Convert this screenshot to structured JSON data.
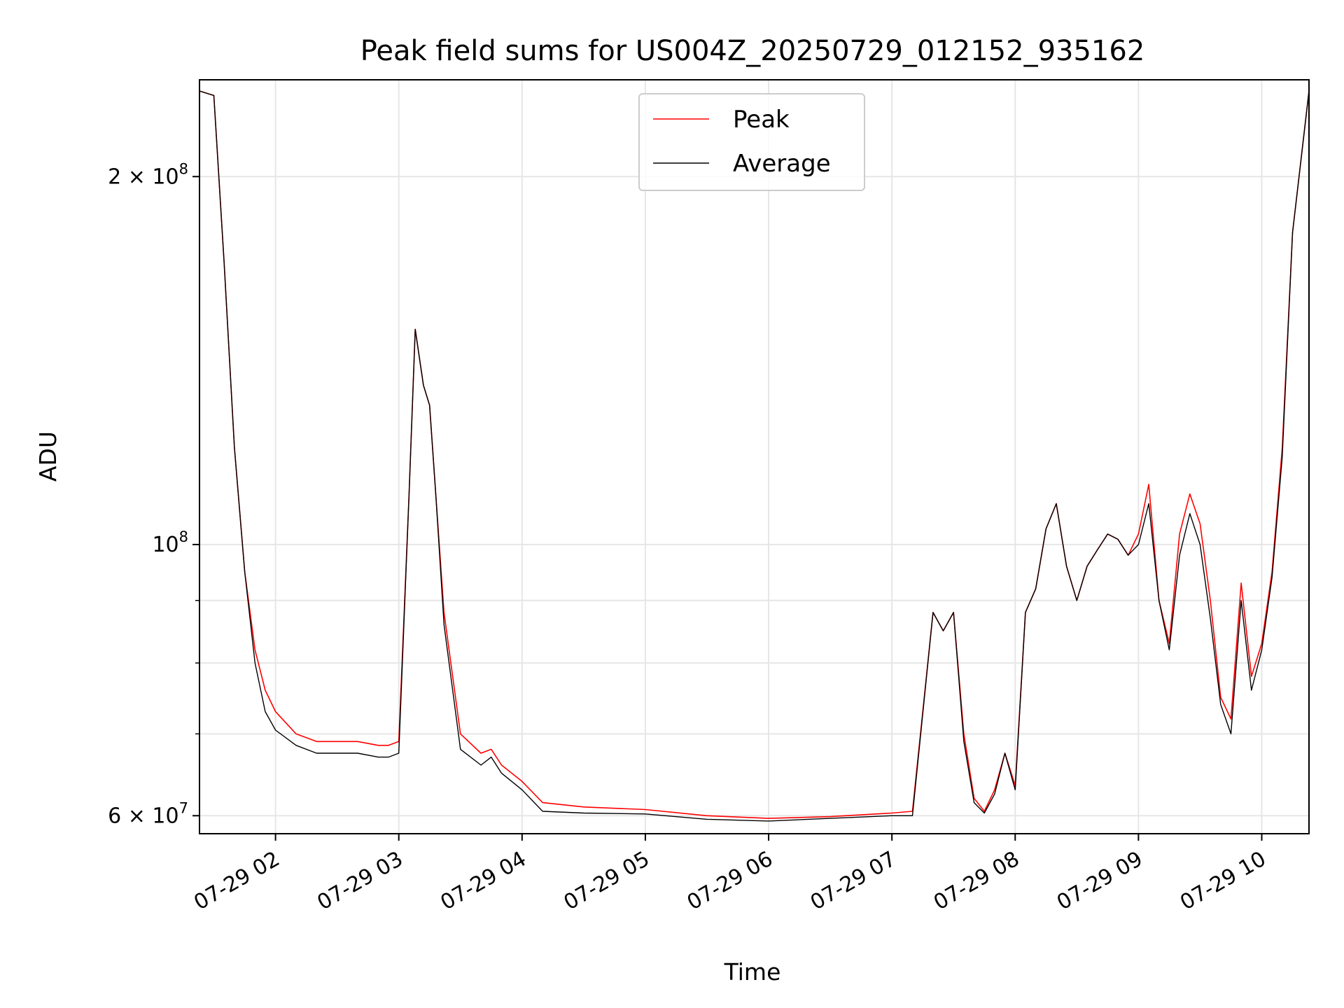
{
  "chart_data": {
    "type": "line",
    "title": "Peak field sums for US004Z_20250729_012152_935162",
    "xlabel": "Time",
    "ylabel": "ADU",
    "y_scale": "log",
    "xlim": [
      "2025-07-29 01:23",
      "2025-07-29 10:23"
    ],
    "ylim": [
      58000000,
      240000000
    ],
    "x_ticks": [
      {
        "value": "2025-07-29 02:00",
        "label": "07-29 02"
      },
      {
        "value": "2025-07-29 03:00",
        "label": "07-29 03"
      },
      {
        "value": "2025-07-29 04:00",
        "label": "07-29 04"
      },
      {
        "value": "2025-07-29 05:00",
        "label": "07-29 05"
      },
      {
        "value": "2025-07-29 06:00",
        "label": "07-29 06"
      },
      {
        "value": "2025-07-29 07:00",
        "label": "07-29 07"
      },
      {
        "value": "2025-07-29 08:00",
        "label": "07-29 08"
      },
      {
        "value": "2025-07-29 09:00",
        "label": "07-29 09"
      },
      {
        "value": "2025-07-29 10:00",
        "label": "07-29 10"
      }
    ],
    "y_major_ticks": [
      {
        "value": 60000000,
        "label_base": "6 × 10",
        "label_exp": "7"
      },
      {
        "value": 100000000,
        "label_base": "10",
        "label_exp": "8"
      },
      {
        "value": 200000000,
        "label_base": "2 × 10",
        "label_exp": "8"
      }
    ],
    "y_minor_ticks": [
      70000000,
      80000000,
      90000000
    ],
    "grid": true,
    "legend_position": "top-center",
    "series": [
      {
        "name": "Peak",
        "color": "#ff0000",
        "x": [
          "2025-07-29 01:23",
          "2025-07-29 01:30",
          "2025-07-29 01:35",
          "2025-07-29 01:40",
          "2025-07-29 01:45",
          "2025-07-29 01:50",
          "2025-07-29 01:55",
          "2025-07-29 02:00",
          "2025-07-29 02:10",
          "2025-07-29 02:20",
          "2025-07-29 02:30",
          "2025-07-29 02:40",
          "2025-07-29 02:50",
          "2025-07-29 02:55",
          "2025-07-29 03:00",
          "2025-07-29 03:05",
          "2025-07-29 03:08",
          "2025-07-29 03:12",
          "2025-07-29 03:15",
          "2025-07-29 03:18",
          "2025-07-29 03:22",
          "2025-07-29 03:30",
          "2025-07-29 03:40",
          "2025-07-29 03:45",
          "2025-07-29 03:50",
          "2025-07-29 04:00",
          "2025-07-29 04:10",
          "2025-07-29 04:30",
          "2025-07-29 05:00",
          "2025-07-29 05:30",
          "2025-07-29 06:00",
          "2025-07-29 06:30",
          "2025-07-29 07:00",
          "2025-07-29 07:10",
          "2025-07-29 07:20",
          "2025-07-29 07:25",
          "2025-07-29 07:30",
          "2025-07-29 07:35",
          "2025-07-29 07:40",
          "2025-07-29 07:45",
          "2025-07-29 07:50",
          "2025-07-29 07:55",
          "2025-07-29 08:00",
          "2025-07-29 08:05",
          "2025-07-29 08:10",
          "2025-07-29 08:15",
          "2025-07-29 08:20",
          "2025-07-29 08:25",
          "2025-07-29 08:30",
          "2025-07-29 08:35",
          "2025-07-29 08:40",
          "2025-07-29 08:45",
          "2025-07-29 08:50",
          "2025-07-29 08:55",
          "2025-07-29 09:00",
          "2025-07-29 09:05",
          "2025-07-29 09:10",
          "2025-07-29 09:15",
          "2025-07-29 09:20",
          "2025-07-29 09:25",
          "2025-07-29 09:30",
          "2025-07-29 09:35",
          "2025-07-29 09:40",
          "2025-07-29 09:45",
          "2025-07-29 09:50",
          "2025-07-29 09:55",
          "2025-07-29 10:00",
          "2025-07-29 10:05",
          "2025-07-29 10:10",
          "2025-07-29 10:15",
          "2025-07-29 10:23"
        ],
        "values": [
          235000000,
          233000000,
          170000000,
          120000000,
          95000000,
          82000000,
          76000000,
          73000000,
          70000000,
          69000000,
          69000000,
          69000000,
          68500000,
          68500000,
          69000000,
          110000000,
          150000000,
          135000000,
          130000000,
          110000000,
          88000000,
          70000000,
          67500000,
          68000000,
          66000000,
          64000000,
          61500000,
          61000000,
          60700000,
          60000000,
          59700000,
          59900000,
          60300000,
          60500000,
          88000000,
          85000000,
          88000000,
          70000000,
          62000000,
          60500000,
          63000000,
          67500000,
          63500000,
          88000000,
          92000000,
          103000000,
          108000000,
          96000000,
          90000000,
          96000000,
          99000000,
          102000000,
          101000000,
          98000000,
          102000000,
          112000000,
          90000000,
          83000000,
          102000000,
          110000000,
          104000000,
          90000000,
          75000000,
          72000000,
          93000000,
          78000000,
          83000000,
          95000000,
          120000000,
          180000000,
          235000000
        ]
      },
      {
        "name": "Average",
        "color": "#000000",
        "x": [
          "2025-07-29 01:23",
          "2025-07-29 01:30",
          "2025-07-29 01:35",
          "2025-07-29 01:40",
          "2025-07-29 01:45",
          "2025-07-29 01:50",
          "2025-07-29 01:55",
          "2025-07-29 02:00",
          "2025-07-29 02:10",
          "2025-07-29 02:20",
          "2025-07-29 02:30",
          "2025-07-29 02:40",
          "2025-07-29 02:50",
          "2025-07-29 02:55",
          "2025-07-29 03:00",
          "2025-07-29 03:05",
          "2025-07-29 03:08",
          "2025-07-29 03:12",
          "2025-07-29 03:15",
          "2025-07-29 03:18",
          "2025-07-29 03:22",
          "2025-07-29 03:30",
          "2025-07-29 03:40",
          "2025-07-29 03:45",
          "2025-07-29 03:50",
          "2025-07-29 04:00",
          "2025-07-29 04:10",
          "2025-07-29 04:30",
          "2025-07-29 05:00",
          "2025-07-29 05:30",
          "2025-07-29 06:00",
          "2025-07-29 06:30",
          "2025-07-29 07:00",
          "2025-07-29 07:10",
          "2025-07-29 07:20",
          "2025-07-29 07:25",
          "2025-07-29 07:30",
          "2025-07-29 07:35",
          "2025-07-29 07:40",
          "2025-07-29 07:45",
          "2025-07-29 07:50",
          "2025-07-29 07:55",
          "2025-07-29 08:00",
          "2025-07-29 08:05",
          "2025-07-29 08:10",
          "2025-07-29 08:15",
          "2025-07-29 08:20",
          "2025-07-29 08:25",
          "2025-07-29 08:30",
          "2025-07-29 08:35",
          "2025-07-29 08:40",
          "2025-07-29 08:45",
          "2025-07-29 08:50",
          "2025-07-29 08:55",
          "2025-07-29 09:00",
          "2025-07-29 09:05",
          "2025-07-29 09:10",
          "2025-07-29 09:15",
          "2025-07-29 09:20",
          "2025-07-29 09:25",
          "2025-07-29 09:30",
          "2025-07-29 09:35",
          "2025-07-29 09:40",
          "2025-07-29 09:45",
          "2025-07-29 09:50",
          "2025-07-29 09:55",
          "2025-07-29 10:00",
          "2025-07-29 10:05",
          "2025-07-29 10:10",
          "2025-07-29 10:15",
          "2025-07-29 10:23"
        ],
        "values": [
          235000000,
          233000000,
          170000000,
          120000000,
          95000000,
          80000000,
          73000000,
          70500000,
          68500000,
          67500000,
          67500000,
          67500000,
          67000000,
          67000000,
          67500000,
          110000000,
          150000000,
          135000000,
          130000000,
          110000000,
          86000000,
          68000000,
          66000000,
          67000000,
          65000000,
          63000000,
          60500000,
          60300000,
          60200000,
          59600000,
          59400000,
          59700000,
          60000000,
          60000000,
          88000000,
          85000000,
          88000000,
          69000000,
          61500000,
          60300000,
          62500000,
          67500000,
          63000000,
          88000000,
          92000000,
          103000000,
          108000000,
          96000000,
          90000000,
          96000000,
          99000000,
          102000000,
          101000000,
          98000000,
          100000000,
          108000000,
          90000000,
          82000000,
          98000000,
          106000000,
          100000000,
          87000000,
          74000000,
          70000000,
          90000000,
          76000000,
          82000000,
          94000000,
          118000000,
          180000000,
          235000000
        ]
      }
    ]
  }
}
